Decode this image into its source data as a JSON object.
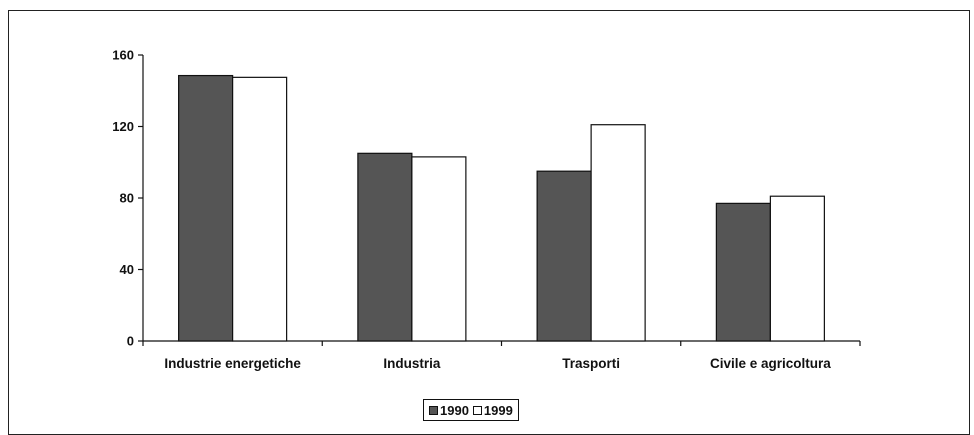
{
  "chart_data": {
    "type": "bar",
    "title": "",
    "xlabel": "",
    "ylabel": "",
    "categories": [
      "Industrie energetiche",
      "Industria",
      "Trasporti",
      "Civile e agricoltura"
    ],
    "series": [
      {
        "name": "1990",
        "values": [
          148.5,
          105,
          95,
          77
        ],
        "color": "#555555"
      },
      {
        "name": "1999",
        "values": [
          147.5,
          103,
          121,
          81
        ],
        "color": "#ffffff"
      }
    ],
    "ylim": [
      0,
      160
    ],
    "yticks": [
      0,
      40,
      80,
      120,
      160
    ],
    "ytick_labels": [
      "0",
      "40",
      "80",
      "120",
      "160"
    ],
    "grid": false,
    "legend_position": "bottom-center"
  }
}
